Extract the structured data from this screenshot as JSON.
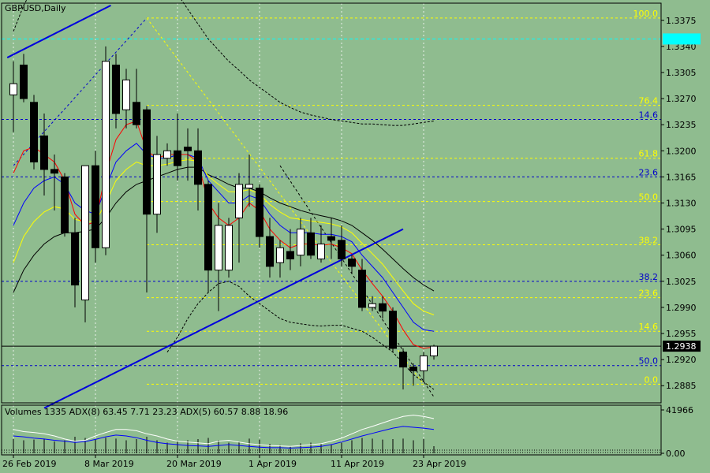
{
  "chart_data": {
    "type": "candlestick",
    "title": "GBPUSD,Daily",
    "indicator_title": "Volumes 1335 ADX(8) 63.45 7.71 23.23 ADX(5) 60.57 8.88 18.96",
    "last_price": "1.2938",
    "cyan_price_tag": "1.3350",
    "y_ticks": [
      "1.3375",
      "1.3340",
      "1.3305",
      "1.3270",
      "1.3235",
      "1.3200",
      "1.3165",
      "1.3130",
      "1.3095",
      "1.3060",
      "1.3025",
      "1.2990",
      "1.2955",
      "1.2920",
      "1.2885"
    ],
    "y_tick_values": [
      1.3375,
      1.334,
      1.3305,
      1.327,
      1.3235,
      1.32,
      1.3165,
      1.313,
      1.3095,
      1.306,
      1.3025,
      1.299,
      1.2955,
      1.292,
      1.2885
    ],
    "x_ticks": [
      {
        "label": "26 Feb 2019",
        "bar": 0
      },
      {
        "label": "8 Mar 2019",
        "bar": 8
      },
      {
        "label": "20 Mar 2019",
        "bar": 16
      },
      {
        "label": "1 Apr 2019",
        "bar": 24
      },
      {
        "label": "11 Apr 2019",
        "bar": 32
      },
      {
        "label": "23 Apr 2019",
        "bar": 40
      }
    ],
    "indicator_ticks": [
      "41966",
      "0.00"
    ],
    "indicator_tick_values": [
      41966,
      0
    ],
    "fib_levels_yellow": [
      {
        "label": "100.0",
        "price": 1.3378
      },
      {
        "label": "76.4",
        "price": 1.3261
      },
      {
        "label": "61.8",
        "price": 1.319
      },
      {
        "label": "50.0",
        "price": 1.3132
      },
      {
        "label": "38.2",
        "price": 1.3074
      },
      {
        "label": "23.6",
        "price": 1.3003
      },
      {
        "label": "14.6",
        "price": 1.2958
      },
      {
        "label": "0.0",
        "price": 1.2887
      }
    ],
    "fib_levels_blue": [
      {
        "label": "14.6",
        "price": 1.3242
      },
      {
        "label": "23.6",
        "price": 1.3165
      },
      {
        "label": "38.2",
        "price": 1.3025
      },
      {
        "label": "50.0",
        "price": 1.2912
      }
    ],
    "candles": [
      {
        "o": 1.3275,
        "h": 1.332,
        "l": 1.3225,
        "c": 1.329
      },
      {
        "o": 1.3315,
        "h": 1.333,
        "l": 1.3265,
        "c": 1.327
      },
      {
        "o": 1.3265,
        "h": 1.3275,
        "l": 1.3175,
        "c": 1.3185
      },
      {
        "o": 1.322,
        "h": 1.325,
        "l": 1.314,
        "c": 1.3175
      },
      {
        "o": 1.3175,
        "h": 1.3195,
        "l": 1.312,
        "c": 1.317
      },
      {
        "o": 1.3165,
        "h": 1.317,
        "l": 1.3085,
        "c": 1.309
      },
      {
        "o": 1.309,
        "h": 1.311,
        "l": 1.299,
        "c": 1.302
      },
      {
        "o": 1.3,
        "h": 1.318,
        "l": 1.297,
        "c": 1.318
      },
      {
        "o": 1.318,
        "h": 1.32,
        "l": 1.305,
        "c": 1.307
      },
      {
        "o": 1.307,
        "h": 1.334,
        "l": 1.306,
        "c": 1.332
      },
      {
        "o": 1.3315,
        "h": 1.333,
        "l": 1.323,
        "c": 1.325
      },
      {
        "o": 1.3255,
        "h": 1.331,
        "l": 1.323,
        "c": 1.3295
      },
      {
        "o": 1.3265,
        "h": 1.331,
        "l": 1.323,
        "c": 1.3235
      },
      {
        "o": 1.3255,
        "h": 1.326,
        "l": 1.301,
        "c": 1.3115
      },
      {
        "o": 1.3115,
        "h": 1.322,
        "l": 1.309,
        "c": 1.3195
      },
      {
        "o": 1.319,
        "h": 1.321,
        "l": 1.318,
        "c": 1.32
      },
      {
        "o": 1.32,
        "h": 1.325,
        "l": 1.316,
        "c": 1.318
      },
      {
        "o": 1.3205,
        "h": 1.323,
        "l": 1.316,
        "c": 1.32
      },
      {
        "o": 1.32,
        "h": 1.323,
        "l": 1.312,
        "c": 1.3155
      },
      {
        "o": 1.3155,
        "h": 1.316,
        "l": 1.301,
        "c": 1.304
      },
      {
        "o": 1.304,
        "h": 1.313,
        "l": 1.2985,
        "c": 1.31
      },
      {
        "o": 1.304,
        "h": 1.311,
        "l": 1.303,
        "c": 1.31
      },
      {
        "o": 1.311,
        "h": 1.317,
        "l": 1.305,
        "c": 1.3155
      },
      {
        "o": 1.315,
        "h": 1.3195,
        "l": 1.3125,
        "c": 1.3155
      },
      {
        "o": 1.315,
        "h": 1.3155,
        "l": 1.307,
        "c": 1.3085
      },
      {
        "o": 1.3085,
        "h": 1.311,
        "l": 1.303,
        "c": 1.3045
      },
      {
        "o": 1.305,
        "h": 1.308,
        "l": 1.303,
        "c": 1.307
      },
      {
        "o": 1.3065,
        "h": 1.3095,
        "l": 1.304,
        "c": 1.3055
      },
      {
        "o": 1.306,
        "h": 1.311,
        "l": 1.3045,
        "c": 1.3095
      },
      {
        "o": 1.309,
        "h": 1.311,
        "l": 1.3055,
        "c": 1.306
      },
      {
        "o": 1.3055,
        "h": 1.31,
        "l": 1.305,
        "c": 1.3075
      },
      {
        "o": 1.3085,
        "h": 1.311,
        "l": 1.3055,
        "c": 1.308
      },
      {
        "o": 1.308,
        "h": 1.31,
        "l": 1.3045,
        "c": 1.3055
      },
      {
        "o": 1.3055,
        "h": 1.306,
        "l": 1.3035,
        "c": 1.3045
      },
      {
        "o": 1.304,
        "h": 1.3055,
        "l": 1.2985,
        "c": 1.299
      },
      {
        "o": 1.299,
        "h": 1.3005,
        "l": 1.2985,
        "c": 1.2995
      },
      {
        "o": 1.2995,
        "h": 1.3005,
        "l": 1.2975,
        "c": 1.2985
      },
      {
        "o": 1.2985,
        "h": 1.299,
        "l": 1.293,
        "c": 1.2935
      },
      {
        "o": 1.293,
        "h": 1.2935,
        "l": 1.288,
        "c": 1.291
      },
      {
        "o": 1.291,
        "h": 1.2915,
        "l": 1.2885,
        "c": 1.2905
      },
      {
        "o": 1.2905,
        "h": 1.293,
        "l": 1.289,
        "c": 1.2925
      },
      {
        "o": 1.2925,
        "h": 1.294,
        "l": 1.292,
        "c": 1.2938
      }
    ],
    "ma_red": [
      1.317,
      1.32,
      1.3205,
      1.3195,
      1.3185,
      1.316,
      1.3115,
      1.31,
      1.3105,
      1.317,
      1.3215,
      1.3235,
      1.324,
      1.32,
      1.319,
      1.3195,
      1.3195,
      1.3195,
      1.3185,
      1.313,
      1.311,
      1.31,
      1.311,
      1.313,
      1.312,
      1.3095,
      1.308,
      1.307,
      1.3075,
      1.3075,
      1.3073,
      1.3075,
      1.307,
      1.3062,
      1.304,
      1.3022,
      1.3005,
      1.2985,
      1.296,
      1.294,
      1.2935,
      1.2937
    ],
    "ma_blue": [
      1.31,
      1.313,
      1.315,
      1.316,
      1.3165,
      1.3155,
      1.313,
      1.312,
      1.3115,
      1.315,
      1.3185,
      1.32,
      1.321,
      1.3195,
      1.319,
      1.319,
      1.3195,
      1.3195,
      1.319,
      1.316,
      1.3145,
      1.313,
      1.313,
      1.314,
      1.3135,
      1.3115,
      1.31,
      1.309,
      1.309,
      1.309,
      1.3088,
      1.3088,
      1.3085,
      1.3078,
      1.306,
      1.3045,
      1.303,
      1.301,
      1.299,
      1.297,
      1.296,
      1.2958
    ],
    "ma_yellow": [
      1.305,
      1.3085,
      1.3105,
      1.3118,
      1.3125,
      1.3122,
      1.3108,
      1.3105,
      1.3105,
      1.313,
      1.316,
      1.3175,
      1.3185,
      1.318,
      1.318,
      1.3182,
      1.3186,
      1.3188,
      1.3186,
      1.3166,
      1.3155,
      1.3145,
      1.3145,
      1.3148,
      1.3142,
      1.3128,
      1.3118,
      1.311,
      1.3108,
      1.3106,
      1.3104,
      1.3102,
      1.3098,
      1.309,
      1.3076,
      1.3062,
      1.3048,
      1.303,
      1.3012,
      1.2995,
      1.2985,
      1.298
    ],
    "ma_black": [
      1.301,
      1.304,
      1.306,
      1.3075,
      1.3085,
      1.309,
      1.309,
      1.3092,
      1.3095,
      1.311,
      1.313,
      1.3145,
      1.3155,
      1.316,
      1.3165,
      1.317,
      1.3175,
      1.3178,
      1.3178,
      1.3168,
      1.3162,
      1.3155,
      1.315,
      1.315,
      1.3145,
      1.3137,
      1.313,
      1.3125,
      1.312,
      1.3116,
      1.3113,
      1.311,
      1.3106,
      1.31,
      1.309,
      1.308,
      1.3068,
      1.3055,
      1.3042,
      1.303,
      1.302,
      1.3012
    ],
    "env_upper": [
      1.336,
      1.3395,
      1.342,
      1.344,
      1.3455,
      1.347,
      1.348,
      1.3485,
      1.349,
      1.349,
      1.349,
      1.349,
      1.348,
      1.347,
      1.345,
      1.343,
      1.341,
      1.339,
      1.337,
      1.335,
      1.3335,
      1.332,
      1.3308,
      1.3295,
      1.3285,
      1.3275,
      1.3265,
      1.3258,
      1.3252,
      1.3248,
      1.3245,
      1.3242,
      1.324,
      1.3238,
      1.3236,
      1.3236,
      1.3235,
      1.3234,
      1.3234,
      1.3236,
      1.3238,
      1.324
    ],
    "env_lower": [
      null,
      null,
      null,
      null,
      null,
      null,
      null,
      null,
      null,
      null,
      null,
      null,
      null,
      null,
      null,
      1.293,
      1.295,
      1.2975,
      1.2995,
      1.301,
      1.3022,
      1.3025,
      1.3018,
      1.3005,
      1.2995,
      1.2985,
      1.2975,
      1.297,
      1.2968,
      1.2966,
      1.2965,
      1.2966,
      1.2966,
      1.2962,
      1.2958,
      1.295,
      1.294,
      1.293,
      1.2915,
      1.29,
      1.289,
      1.288
    ],
    "trendlines": [
      {
        "color": "#0000dd",
        "from": {
          "bar": -0.6,
          "price": 1.3325
        },
        "to": {
          "bar": 9.5,
          "price": 1.3395
        }
      },
      {
        "color": "#0000dd",
        "from": {
          "bar": 3,
          "price": 1.2855
        },
        "to": {
          "bar": 38,
          "price": 1.3095
        }
      }
    ],
    "adx_main": [
      0.55,
      0.5,
      0.48,
      0.45,
      0.4,
      0.33,
      0.28,
      0.3,
      0.4,
      0.48,
      0.55,
      0.55,
      0.52,
      0.45,
      0.4,
      0.33,
      0.28,
      0.26,
      0.24,
      0.22,
      0.28,
      0.3,
      0.26,
      0.22,
      0.2,
      0.18,
      0.17,
      0.16,
      0.18,
      0.2,
      0.22,
      0.28,
      0.35,
      0.45,
      0.55,
      0.62,
      0.7,
      0.78,
      0.85,
      0.88,
      0.85,
      0.8
    ],
    "adx_plus": [
      0.4,
      0.38,
      0.35,
      0.33,
      0.3,
      0.28,
      0.25,
      0.27,
      0.32,
      0.38,
      0.42,
      0.4,
      0.36,
      0.3,
      0.25,
      0.22,
      0.2,
      0.18,
      0.17,
      0.16,
      0.18,
      0.2,
      0.18,
      0.16,
      0.14,
      0.13,
      0.13,
      0.12,
      0.13,
      0.14,
      0.16,
      0.2,
      0.26,
      0.33,
      0.4,
      0.46,
      0.52,
      0.58,
      0.62,
      0.6,
      0.58,
      0.55
    ],
    "volumes": [
      0.6,
      0.55,
      0.58,
      0.62,
      0.5,
      0.55,
      0.7,
      0.65,
      0.58,
      0.66,
      0.62,
      0.55,
      0.6,
      0.7,
      0.55,
      0.45,
      0.5,
      0.55,
      0.6,
      0.65,
      0.55,
      0.45,
      0.5,
      0.62,
      0.58,
      0.4,
      0.35,
      0.3,
      0.42,
      0.45,
      0.4,
      0.38,
      0.45,
      0.55,
      0.65,
      0.62,
      0.58,
      0.6,
      0.62,
      0.55,
      0.6,
      0.3
    ]
  }
}
